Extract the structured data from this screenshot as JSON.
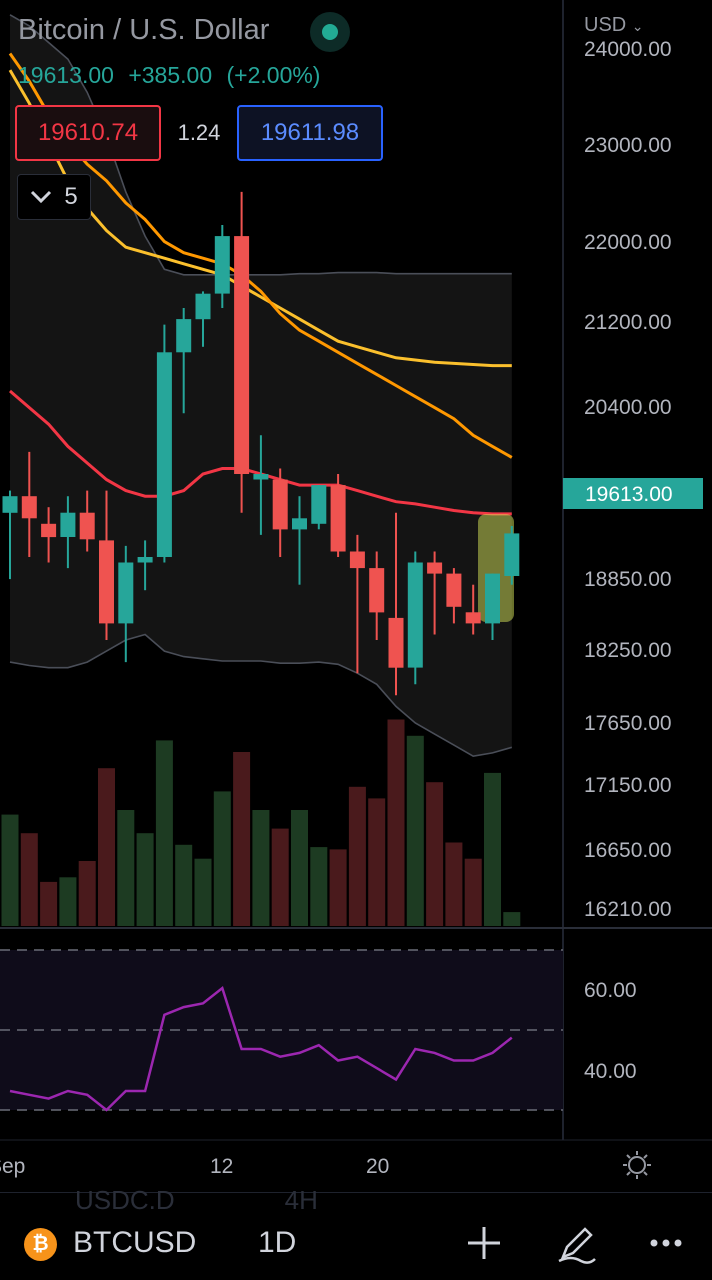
{
  "header": {
    "title": "Bitcoin / U.S. Dollar",
    "last_price": "19613.00",
    "change": "+385.00",
    "change_pct": "(+2.00%)",
    "sell_price": "19610.74",
    "spread": "1.24",
    "buy_price": "19611.98",
    "indicators_count": "5"
  },
  "price_axis": {
    "currency": "USD",
    "labels": [
      "24000.00",
      "23000.00",
      "22000.00",
      "21200.00",
      "20400.00",
      "18850.00",
      "18250.00",
      "17650.00",
      "17150.00",
      "16650.00",
      "16210.00"
    ],
    "current_price_label": "19613.00"
  },
  "rsi_axis": {
    "labels": [
      "60.00",
      "40.00"
    ]
  },
  "time_axis": {
    "labels": [
      "Sep",
      "12",
      "20"
    ]
  },
  "background_list": {
    "row1_symbol": "USDC.D",
    "row1_interval": "4H"
  },
  "toolbar": {
    "symbol": "BTCUSD",
    "interval": "1D",
    "icon_btc": "bitcoin-icon",
    "icon_add": "plus-icon",
    "icon_draw": "pen-icon",
    "icon_more": "more-icon"
  },
  "colors": {
    "up": "#26a69a",
    "down": "#ef5350",
    "ma_red": "#f23645",
    "ma_orange": "#ff9800",
    "ma_yellow": "#fbc02d",
    "rsi": "#9c27b0",
    "highlight": "#d4e157"
  },
  "chart_data": {
    "type": "candlestick",
    "interval": "1D",
    "price_range": [
      16210,
      24000
    ],
    "candles": [
      {
        "o": 19800,
        "h": 20000,
        "l": 19200,
        "c": 19950
      },
      {
        "o": 19950,
        "h": 20350,
        "l": 19400,
        "c": 19750
      },
      {
        "o": 19700,
        "h": 19850,
        "l": 19350,
        "c": 19580
      },
      {
        "o": 19580,
        "h": 19950,
        "l": 19300,
        "c": 19800
      },
      {
        "o": 19800,
        "h": 20000,
        "l": 19450,
        "c": 19560
      },
      {
        "o": 19550,
        "h": 20000,
        "l": 18650,
        "c": 18800
      },
      {
        "o": 18800,
        "h": 19500,
        "l": 18450,
        "c": 19350
      },
      {
        "o": 19350,
        "h": 19550,
        "l": 19100,
        "c": 19400
      },
      {
        "o": 19400,
        "h": 21500,
        "l": 19350,
        "c": 21250
      },
      {
        "o": 21250,
        "h": 21650,
        "l": 20700,
        "c": 21550
      },
      {
        "o": 21550,
        "h": 21800,
        "l": 21300,
        "c": 21780
      },
      {
        "o": 21780,
        "h": 22400,
        "l": 21650,
        "c": 22300
      },
      {
        "o": 22300,
        "h": 22700,
        "l": 19800,
        "c": 20150
      },
      {
        "o": 20100,
        "h": 20500,
        "l": 19600,
        "c": 20150
      },
      {
        "o": 20100,
        "h": 20200,
        "l": 19400,
        "c": 19650
      },
      {
        "o": 19650,
        "h": 19950,
        "l": 19150,
        "c": 19750
      },
      {
        "o": 19700,
        "h": 20050,
        "l": 19650,
        "c": 20050
      },
      {
        "o": 20050,
        "h": 20150,
        "l": 19400,
        "c": 19450
      },
      {
        "o": 19450,
        "h": 19600,
        "l": 18350,
        "c": 19300
      },
      {
        "o": 19300,
        "h": 19450,
        "l": 18650,
        "c": 18900
      },
      {
        "o": 18850,
        "h": 19800,
        "l": 18150,
        "c": 18400
      },
      {
        "o": 18400,
        "h": 19450,
        "l": 18250,
        "c": 19350
      },
      {
        "o": 19350,
        "h": 19450,
        "l": 18700,
        "c": 19250
      },
      {
        "o": 19250,
        "h": 19300,
        "l": 18800,
        "c": 18950
      },
      {
        "o": 18900,
        "h": 19150,
        "l": 18700,
        "c": 18800
      },
      {
        "o": 18800,
        "h": 19250,
        "l": 18650,
        "c": 19250
      },
      {
        "o": 19228,
        "h": 19680,
        "l": 19150,
        "c": 19613
      }
    ],
    "volume_relative": [
      0.48,
      0.4,
      0.19,
      0.21,
      0.28,
      0.68,
      0.5,
      0.4,
      0.8,
      0.35,
      0.29,
      0.58,
      0.75,
      0.5,
      0.42,
      0.5,
      0.34,
      0.33,
      0.6,
      0.55,
      0.89,
      0.82,
      0.62,
      0.36,
      0.29,
      0.66,
      0.06
    ],
    "ma_red": [
      20900,
      20750,
      20600,
      20400,
      20250,
      20100,
      20000,
      19950,
      19950,
      20000,
      20150,
      20200,
      20200,
      20150,
      20100,
      20050,
      20050,
      20050,
      20000,
      19950,
      19900,
      19880,
      19850,
      19820,
      19800,
      19790,
      19790
    ],
    "ma_orange": [
      23950,
      23700,
      23400,
      23150,
      22950,
      22800,
      22600,
      22450,
      22250,
      22150,
      22100,
      22050,
      21950,
      21800,
      21600,
      21450,
      21350,
      21250,
      21150,
      21050,
      20950,
      20850,
      20750,
      20650,
      20500,
      20400,
      20300
    ],
    "ma_yellow": [
      23800,
      23500,
      23150,
      22800,
      22550,
      22350,
      22200,
      22150,
      22100,
      22050,
      22000,
      21950,
      21850,
      21750,
      21650,
      21550,
      21450,
      21350,
      21300,
      21250,
      21200,
      21180,
      21160,
      21150,
      21140,
      21130,
      21130
    ],
    "bb_upper": [
      24300,
      24200,
      24050,
      23900,
      23600,
      23200,
      22700,
      22300,
      22000,
      21950,
      21950,
      21950,
      21950,
      21950,
      21950,
      21960,
      21960,
      21970,
      21970,
      21970,
      21960,
      21960,
      21960,
      21960,
      21960,
      21960,
      21960
    ],
    "bb_lower": [
      18450,
      18420,
      18400,
      18400,
      18450,
      18550,
      18650,
      18700,
      18550,
      18500,
      18480,
      18460,
      18460,
      18460,
      18440,
      18440,
      18450,
      18430,
      18350,
      18250,
      18050,
      17900,
      17800,
      17700,
      17600,
      17630,
      17680
    ],
    "rsi_range": [
      29,
      71
    ],
    "rsi": [
      34,
      33,
      32,
      34,
      33,
      29,
      34,
      34,
      54,
      56,
      57,
      61,
      45,
      45,
      43,
      44,
      46,
      42,
      43,
      40,
      37,
      45,
      44,
      42,
      42,
      44,
      48
    ]
  }
}
